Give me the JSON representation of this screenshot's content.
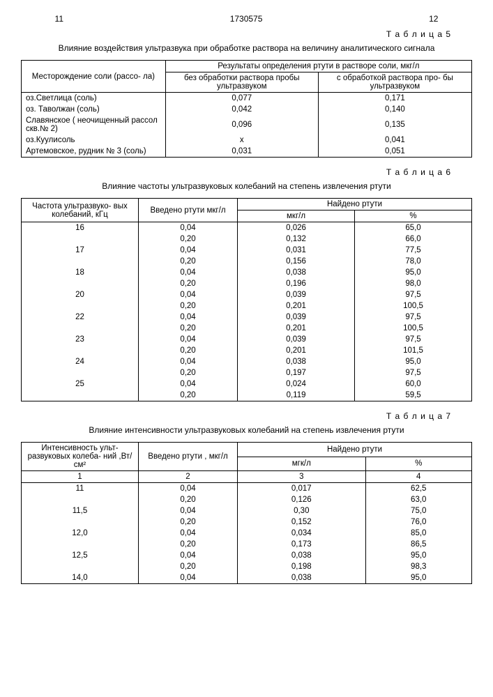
{
  "header": {
    "leftnum": "11",
    "docnum": "1730575",
    "rightnum": "12"
  },
  "table5": {
    "label": "Т а б л и ц а  5",
    "caption": "Влияние воздействия ультразвука при обработке раствора на величину аналитического сигнала",
    "h1": "Месторождение соли (рассо-\nла)",
    "h2": "Результаты определения ртути в растворе соли, мкг/л",
    "h2a": "без обработки раствора пробы ультразвуком",
    "h2b": "с обработкой раствора про-\nбы ультразвуком",
    "rows": [
      [
        "оз.Светлица (соль)",
        "0,077",
        "0,171"
      ],
      [
        "оз. Таволжан (соль)",
        "0,042",
        "0,140"
      ],
      [
        "Славянское ( неочищенный рассол скв.№ 2)",
        "0,096",
        "0,135"
      ],
      [
        "оз.Куулисоль",
        "x",
        "0,041"
      ],
      [
        "Артемовское, рудник № 3 (соль)",
        "0,031",
        "0,051"
      ]
    ]
  },
  "table6": {
    "label": "Т а б л и ц а  6",
    "caption": "Влияние частоты ультразвуковых колебаний на степень извлечения ртути",
    "h1": "Частота ультразвуко-\nвых колебаний, кГц",
    "h2": "Введено ртути мкг/л",
    "h3": "Найдено ртути",
    "h3a": "мкг/л",
    "h3b": "%",
    "rows": [
      [
        "16",
        "0,04",
        "0,026",
        "65,0"
      ],
      [
        "",
        "0,20",
        "0,132",
        "66,0"
      ],
      [
        "17",
        "0,04",
        "0,031",
        "77,5"
      ],
      [
        "",
        "0,20",
        "0,156",
        "78,0"
      ],
      [
        "18",
        "0,04",
        "0,038",
        "95,0"
      ],
      [
        "",
        "0,20",
        "0,196",
        "98,0"
      ],
      [
        "20",
        "0,04",
        "0,039",
        "97,5"
      ],
      [
        "",
        "0,20",
        "0,201",
        "100,5"
      ],
      [
        "22",
        "0,04",
        "0,039",
        "97,5"
      ],
      [
        "",
        "0,20",
        "0,201",
        "100,5"
      ],
      [
        "23",
        "0,04",
        "0,039",
        "97,5"
      ],
      [
        "",
        "0,20",
        "0,201",
        "101,5"
      ],
      [
        "24",
        "0,04",
        "0,038",
        "95,0"
      ],
      [
        "",
        "0,20",
        "0,197",
        "97,5"
      ],
      [
        "25",
        "0,04",
        "0,024",
        "60,0"
      ],
      [
        "",
        "0,20",
        "0,119",
        "59,5"
      ]
    ]
  },
  "table7": {
    "label": "Т а б л и ц а  7",
    "caption": "Влияние интенсивности ультразвуковых колебаний на степень извлечения ртути",
    "h1": "Интенсивность ульт-\nразвуковых колеба-\nний ,Вт/см²",
    "h2": "Введено ртути , мкг/л",
    "h3": "Найдено ртути",
    "h3a": "мгк/л",
    "h3b": "%",
    "sub": [
      "1",
      "2",
      "3",
      "4"
    ],
    "rows": [
      [
        "11",
        "0,04",
        "0,017",
        "62,5"
      ],
      [
        "",
        "0,20",
        "0,126",
        "63,0"
      ],
      [
        "11,5",
        "0,04",
        "0,30",
        "75,0"
      ],
      [
        "",
        "0,20",
        "0,152",
        "76,0"
      ],
      [
        "12,0",
        "0,04",
        "0,034",
        "85,0"
      ],
      [
        "",
        "0,20",
        "0,173",
        "86,5"
      ],
      [
        "12,5",
        "0,04",
        "0,038",
        "95,0"
      ],
      [
        "",
        "0,20",
        "0,198",
        "98,3"
      ],
      [
        "14,0",
        "0,04",
        "0,038",
        "95,0"
      ]
    ]
  }
}
